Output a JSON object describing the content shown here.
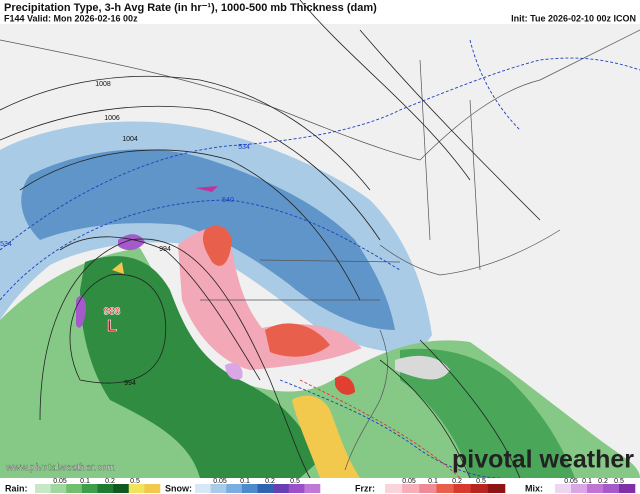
{
  "header": {
    "title": "Precipitation Type, 3-h Avg Rate (in hr⁻¹), 1000-500 mb Thickness (dam)",
    "valid": "F144 Valid: Mon 2026-02-16 00z",
    "init": "Init: Tue 2026-02-10 00z ICON"
  },
  "map": {
    "labels": [
      "1008",
      "1006",
      "1004",
      "534",
      "540",
      "534",
      "994",
      "988",
      "L",
      "994"
    ]
  },
  "watermark": {
    "url": "www.pivotalweather.com",
    "brand": "pivotal weather"
  },
  "legend": [
    {
      "name": "Rain:",
      "ticks": [
        "0.05",
        "0.1",
        "0.2",
        "0.5"
      ]
    },
    {
      "name": "Snow:",
      "ticks": [
        "0.05",
        "0.1",
        "0.2",
        "0.5"
      ]
    },
    {
      "name": "Frzr:",
      "ticks": [
        "0.05",
        "0.1",
        "0.2",
        "0.5"
      ]
    },
    {
      "name": "Mix:",
      "ticks": [
        "0.05",
        "0.1",
        "0.2",
        "0.5"
      ]
    }
  ]
}
